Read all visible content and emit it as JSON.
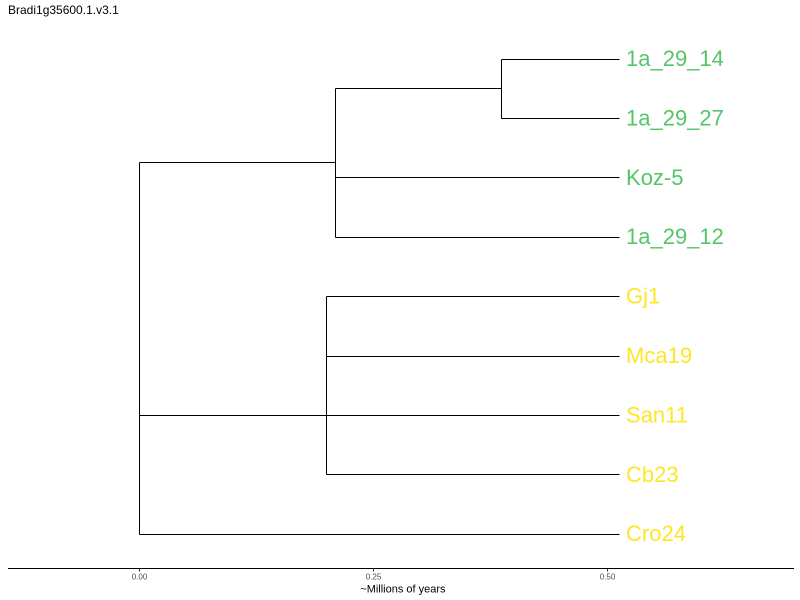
{
  "chart_data": {
    "type": "dendrogram",
    "title": "Bradi1g35600.1.v3.1",
    "xlabel": "~Millions of years",
    "x_ticks": [
      0.0,
      0.25,
      0.5
    ],
    "x_tick_labels": [
      "0.00",
      "0.25",
      "0.50"
    ],
    "xlim": [
      -0.14,
      0.7
    ],
    "tip_depth": 0.513,
    "nodes": [
      {
        "id": "root",
        "x": 0.0
      },
      {
        "id": "n_green",
        "x": 0.21,
        "parent": "root"
      },
      {
        "id": "n_green_sub",
        "x": 0.387,
        "parent": "n_green"
      },
      {
        "id": "n_yellow",
        "x": 0.2,
        "parent": "root"
      },
      {
        "id": "n_yellow_sub",
        "x": 0.2,
        "parent": "n_yellow"
      }
    ],
    "tips": [
      {
        "label": "1a_29_14",
        "parent": "n_green_sub",
        "group": "green"
      },
      {
        "label": "1a_29_27",
        "parent": "n_green_sub",
        "group": "green"
      },
      {
        "label": "Koz-5",
        "parent": "n_green",
        "group": "green"
      },
      {
        "label": "1a_29_12",
        "parent": "n_green",
        "group": "green"
      },
      {
        "label": "Gj1",
        "parent": "n_yellow_sub",
        "group": "yellow"
      },
      {
        "label": "Mca19",
        "parent": "n_yellow_sub",
        "group": "yellow"
      },
      {
        "label": "San11",
        "parent": "n_yellow_sub",
        "group": "yellow"
      },
      {
        "label": "Cb23",
        "parent": "n_yellow",
        "group": "yellow"
      },
      {
        "label": "Cro24",
        "parent": "root",
        "group": "yellow"
      }
    ],
    "group_colors": {
      "green": "#55c667",
      "yellow": "#fde725"
    }
  }
}
